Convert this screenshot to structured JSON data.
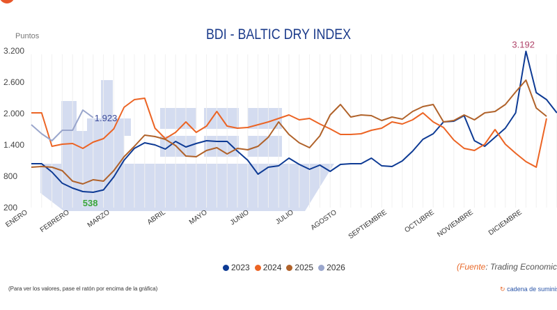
{
  "chart_data": {
    "type": "line",
    "title": "BDI - BALTIC DRY INDEX",
    "ylabel": "Puntos",
    "ylim": [
      200,
      3200
    ],
    "yticks": [
      "3.200",
      "2.600",
      "2.000",
      "1.400",
      "800",
      "200"
    ],
    "ytick_values": [
      3200,
      2600,
      2000,
      1400,
      800,
      200
    ],
    "xlabels": [
      "ENERO",
      "FEBRERO",
      "MARZO",
      "ABRIL",
      "MAYO",
      "JUNIO",
      "JULIO",
      "AGOSTO",
      "SEPTIEMBRE",
      "OCTUBRE",
      "NOVIEMBRE",
      "DICIEMBRE"
    ],
    "grid": true,
    "legend_position": "bottom",
    "series": [
      {
        "name": "2023",
        "color": "#0d3a94",
        "values": [
          1040,
          1040,
          880,
          667,
          573,
          507,
          493,
          538,
          787,
          1107,
          1333,
          1440,
          1400,
          1320,
          1467,
          1360,
          1427,
          1480,
          1467,
          1467,
          1280,
          1107,
          840,
          973,
          1000,
          1147,
          1027,
          933,
          1013,
          893,
          1027,
          1040,
          1040,
          1147,
          1000,
          987,
          1093,
          1280,
          1507,
          1613,
          1840,
          1853,
          1960,
          1480,
          1373,
          1547,
          1720,
          2013,
          3192,
          2400,
          2267,
          2013
        ]
      },
      {
        "name": "2024",
        "color": "#ec6424",
        "values": [
          2013,
          2013,
          1373,
          1413,
          1427,
          1333,
          1453,
          1520,
          1707,
          2120,
          2267,
          2293,
          1720,
          1520,
          1640,
          1840,
          1640,
          1760,
          2040,
          1760,
          1720,
          1733,
          1787,
          1840,
          1907,
          1973,
          1880,
          1907,
          1800,
          1707,
          1600,
          1600,
          1613,
          1680,
          1720,
          1840,
          1800,
          1880,
          2013,
          1840,
          1733,
          1493,
          1333,
          1293,
          1413,
          1693,
          1413,
          1240,
          1080,
          973,
          1907
        ]
      },
      {
        "name": "2025",
        "color": "#b0622a",
        "values": [
          973,
          987,
          973,
          907,
          707,
          653,
          733,
          707,
          907,
          1173,
          1373,
          1587,
          1560,
          1507,
          1387,
          1187,
          1173,
          1293,
          1347,
          1227,
          1333,
          1307,
          1373,
          1547,
          1840,
          1600,
          1440,
          1347,
          1573,
          1973,
          2173,
          1933,
          1973,
          1960,
          1867,
          1933,
          1893,
          2040,
          2133,
          2173,
          1840,
          1867,
          1973,
          1880,
          2013,
          2040,
          2173,
          2413,
          2640,
          2107,
          1947
        ]
      },
      {
        "name": "2026",
        "color": "#9aa6cc",
        "values": [
          1787,
          1613,
          1480,
          1680,
          1680,
          2067,
          1923
        ]
      }
    ],
    "annotations": [
      {
        "text": "1.923",
        "color": "#3a4a9a"
      },
      {
        "text": "538",
        "color": "#3aa63a"
      },
      {
        "text": "3.192",
        "color": "#b0456a"
      }
    ]
  },
  "footer": {
    "source_open": "(",
    "source_label": "Fuente",
    "source_text": ": Trading Economics",
    "hint": "(Para ver los valores, pase el ratón por encima de la gráfica)",
    "brand": "cadena de suministro"
  },
  "colors": {
    "background_ship": "#d4dcf0",
    "accent": "#e8692a"
  }
}
